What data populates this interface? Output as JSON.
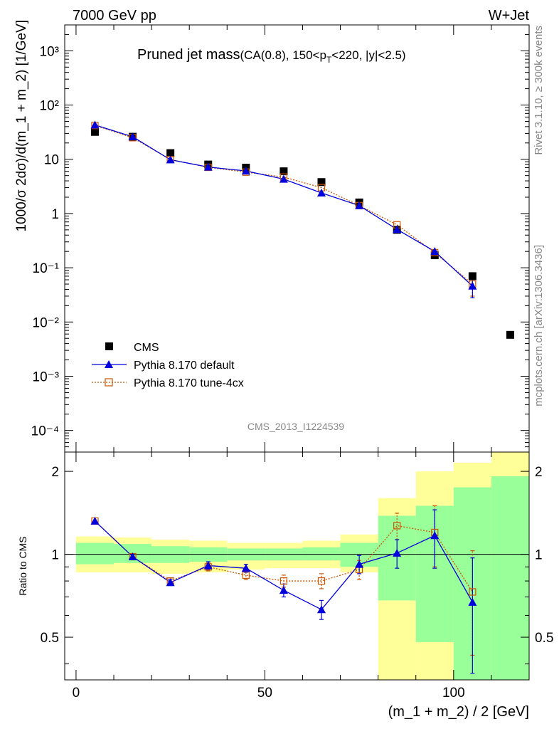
{
  "header": {
    "left": "7000 GeV pp",
    "right": "W+Jet"
  },
  "side": {
    "rivet": "Rivet 3.1.10, ≥ 300k events",
    "mcplots": "mcplots.cern.ch [arXiv:1306.3436]"
  },
  "watermark": "CMS_2013_I1224539",
  "chart_data": [
    {
      "type": "scatter",
      "title": "Pruned jet mass",
      "subtitle_parts": [
        "(CA(0.8), 150<p",
        "T",
        "<220, |y|<2.5)"
      ],
      "ylabel": "1000/σ 2dσ)/d(m_1 + m_2) [1/GeV]",
      "yscale": "log",
      "ylim": [
        4e-05,
        3000
      ],
      "xlim": [
        -3,
        120
      ],
      "y_tick_labels": [
        "10⁻⁴",
        "10⁻³",
        "10⁻²",
        "10⁻¹",
        "1",
        "10",
        "10²",
        "10³"
      ],
      "legend": [
        "CMS",
        "Pythia 8.170 default",
        "Pythia 8.170 tune-4cx"
      ],
      "series": [
        {
          "name": "CMS",
          "color": "#000000",
          "marker": "square",
          "x": [
            5,
            15,
            25,
            35,
            45,
            55,
            65,
            75,
            85,
            95,
            105,
            115
          ],
          "y": [
            32,
            26,
            13,
            8.0,
            7.0,
            6.0,
            3.8,
            1.6,
            0.5,
            0.17,
            0.07,
            0.0058
          ]
        },
        {
          "name": "Pythia 8.170 default",
          "color": "#0000dd",
          "marker": "triangle",
          "x": [
            5,
            15,
            25,
            35,
            45,
            55,
            65,
            75,
            85,
            95,
            105
          ],
          "y": [
            43,
            26,
            9.8,
            7.2,
            6.1,
            4.3,
            2.4,
            1.4,
            0.51,
            0.2,
            0.046
          ],
          "err": [
            0,
            0,
            0,
            0,
            0,
            0,
            0,
            0,
            0,
            0,
            0.018
          ]
        },
        {
          "name": "Pythia 8.170 tune-4cx",
          "color": "#cc5500",
          "marker": "open-square",
          "x": [
            5,
            15,
            25,
            35,
            45,
            55,
            65,
            75,
            85,
            95,
            105
          ],
          "y": [
            42,
            25,
            9.9,
            7.1,
            5.8,
            4.7,
            3.0,
            1.4,
            0.62,
            0.19,
            0.05
          ],
          "err": [
            0,
            0,
            0,
            0,
            0,
            0,
            0,
            0,
            0,
            0,
            0.02
          ]
        }
      ]
    },
    {
      "type": "scatter",
      "ylabel": "Ratio to CMS",
      "xlabel": "(m_1 + m_2) / 2 [GeV]",
      "ylim": [
        0.35,
        2.35
      ],
      "xlim": [
        -3,
        120
      ],
      "x_ticks": [
        0,
        50,
        100
      ],
      "y_ticks": [
        0.5,
        1,
        2
      ],
      "bands": {
        "edges": [
          0,
          10,
          20,
          30,
          40,
          50,
          60,
          70,
          80,
          90,
          100,
          110,
          120
        ],
        "yellow_low": [
          0.86,
          0.86,
          0.85,
          0.86,
          0.88,
          0.89,
          0.89,
          0.86,
          0.35,
          0.35,
          0.35,
          0.35
        ],
        "yellow_high": [
          1.16,
          1.15,
          1.13,
          1.12,
          1.1,
          1.1,
          1.12,
          1.18,
          1.6,
          2.0,
          2.15,
          2.35
        ],
        "green_low": [
          0.92,
          0.93,
          0.93,
          0.94,
          0.95,
          0.95,
          0.95,
          0.9,
          0.68,
          0.48,
          0.35,
          0.35
        ],
        "green_high": [
          1.1,
          1.09,
          1.07,
          1.06,
          1.05,
          1.05,
          1.06,
          1.1,
          1.38,
          1.5,
          1.75,
          1.92
        ]
      },
      "series": [
        {
          "name": "Pythia 8.170 default",
          "color": "#0000dd",
          "x": [
            5,
            15,
            25,
            35,
            45,
            55,
            65,
            75,
            85,
            95,
            105
          ],
          "y": [
            1.32,
            0.98,
            0.79,
            0.91,
            0.89,
            0.74,
            0.63,
            0.92,
            1.01,
            1.17,
            0.67
          ],
          "err": [
            0,
            0,
            0.02,
            0.03,
            0.03,
            0.04,
            0.05,
            0.07,
            0.12,
            0.28,
            0.3
          ]
        },
        {
          "name": "Pythia 8.170 tune-4cx",
          "color": "#cc5500",
          "x": [
            5,
            15,
            25,
            35,
            45,
            55,
            65,
            75,
            85,
            95,
            105
          ],
          "y": [
            1.32,
            0.98,
            0.8,
            0.9,
            0.84,
            0.8,
            0.8,
            0.88,
            1.27,
            1.2,
            0.73
          ],
          "err": [
            0,
            0,
            0.02,
            0.03,
            0.03,
            0.04,
            0.05,
            0.07,
            0.14,
            0.3,
            0.3
          ]
        }
      ]
    }
  ]
}
